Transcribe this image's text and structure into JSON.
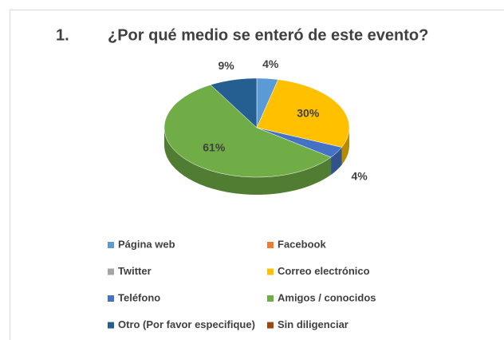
{
  "chart_data": {
    "type": "pie3d",
    "title_number": "1.",
    "title": "¿Por qué medio se enteró de este evento?",
    "categories": [
      "Página web",
      "Facebook",
      "Twitter",
      "Correo electrónico",
      "Teléfono",
      "Amigos / conocidos",
      "Otro (Por favor especifique)",
      "Sin diligenciar"
    ],
    "values": [
      4,
      0,
      0,
      30,
      4,
      61,
      9,
      0
    ],
    "value_labels": [
      "4%",
      null,
      null,
      "30%",
      "4%",
      "61%",
      "9%",
      null
    ],
    "colors": [
      "#5b9bd5",
      "#ed7d31",
      "#a5a5a5",
      "#ffc000",
      "#4472c4",
      "#70ad47",
      "#255e91",
      "#9e480e"
    ],
    "legend": "bottom"
  }
}
